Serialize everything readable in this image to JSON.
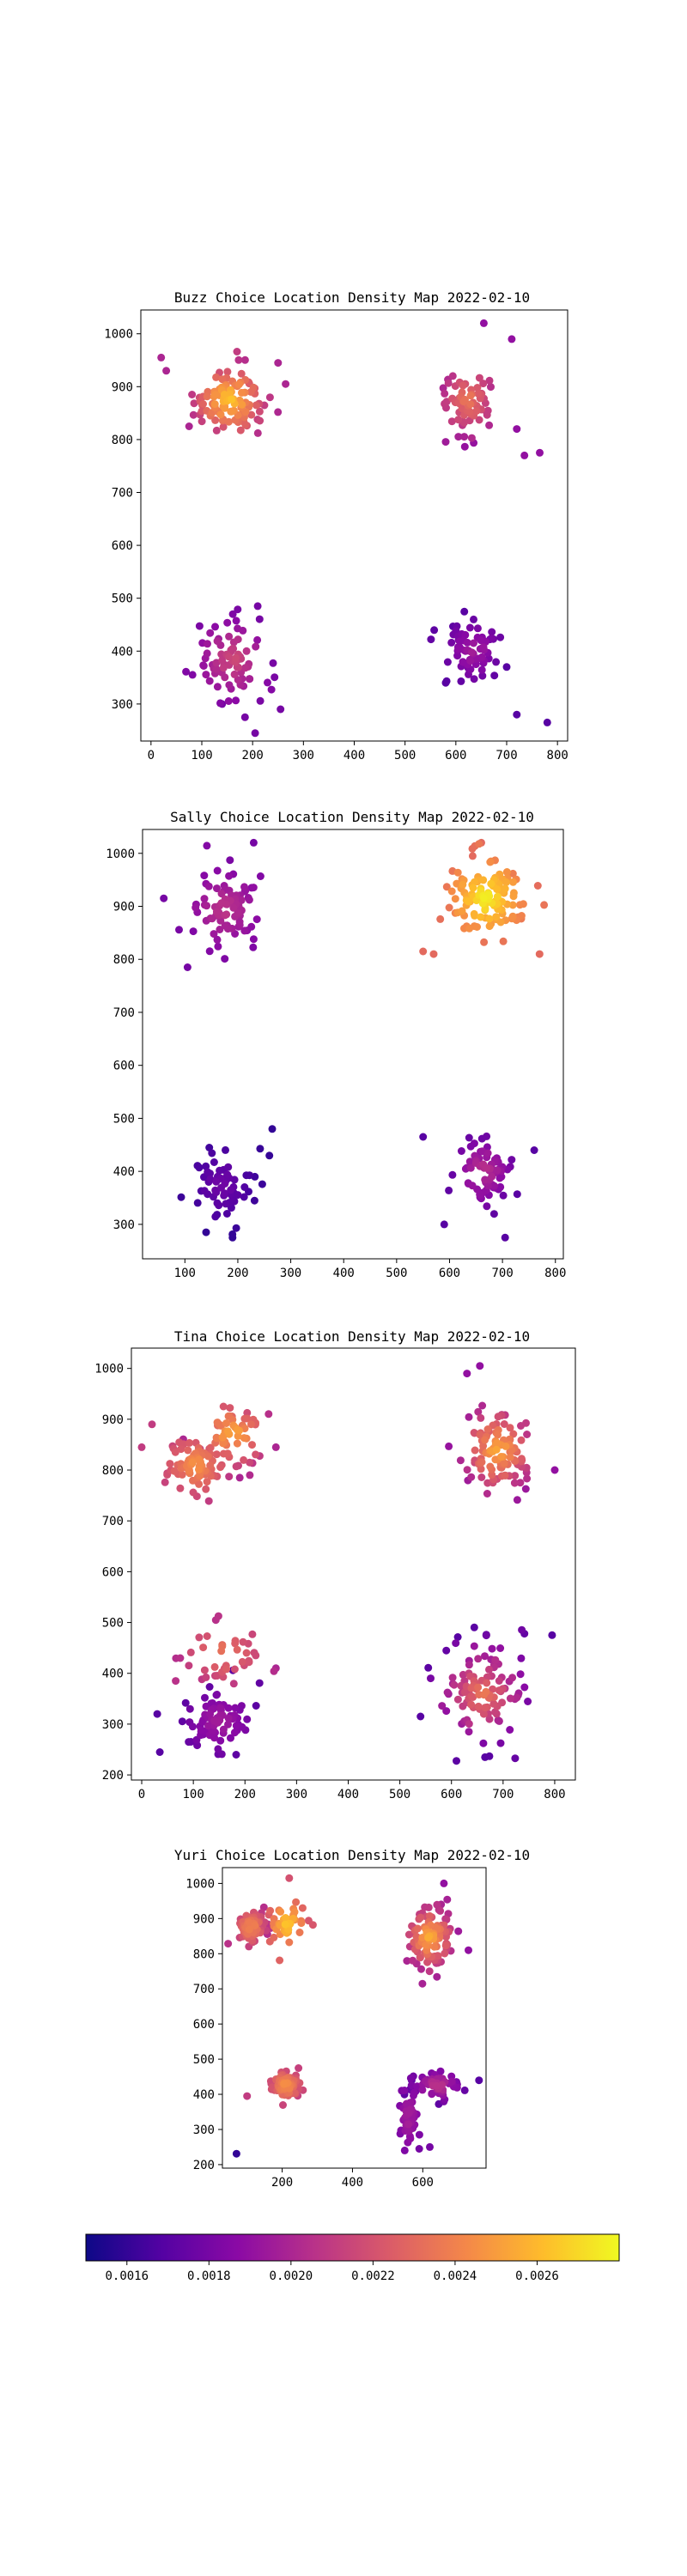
{
  "colorbar": {
    "colormap": "plasma",
    "range": [
      0.0015,
      0.0028
    ],
    "ticks": [
      "0.0016",
      "0.0018",
      "0.0020",
      "0.0022",
      "0.0024",
      "0.0026"
    ],
    "tick_values": [
      0.0016,
      0.0018,
      0.002,
      0.0022,
      0.0024,
      0.0026
    ]
  },
  "chart_data": [
    {
      "type": "scatter",
      "title": "Buzz Choice Location Density Map 2022-02-10",
      "xlim": [
        -20,
        820
      ],
      "ylim": [
        230,
        1045
      ],
      "xticks": [
        0,
        100,
        200,
        300,
        400,
        500,
        600,
        700,
        800
      ],
      "yticks": [
        300,
        400,
        500,
        600,
        700,
        800,
        900,
        1000
      ],
      "clusters": [
        {
          "center": [
            155,
            875
          ],
          "spread": [
            38,
            35
          ],
          "count": 110,
          "density": [
            0.002,
            0.0027
          ],
          "outliers": [
            [
              20,
              955
            ],
            [
              30,
              930
            ],
            [
              250,
              945
            ],
            [
              265,
              905
            ],
            [
              75,
              825
            ]
          ]
        },
        {
          "center": [
            625,
            875
          ],
          "spread": [
            32,
            38
          ],
          "count": 70,
          "density": [
            0.0019,
            0.0024
          ],
          "outliers": [
            [
              655,
              1020
            ],
            [
              710,
              990
            ],
            [
              720,
              820
            ],
            [
              735,
              770
            ],
            [
              765,
              775
            ]
          ]
        },
        {
          "center": [
            160,
            385
          ],
          "spread": [
            35,
            40
          ],
          "count": 80,
          "density": [
            0.0018,
            0.0022
          ],
          "outliers": [
            [
              210,
              485
            ],
            [
              185,
              275
            ],
            [
              205,
              245
            ],
            [
              255,
              290
            ],
            [
              140,
              300
            ]
          ]
        },
        {
          "center": [
            635,
            400
          ],
          "spread": [
            30,
            30
          ],
          "count": 70,
          "density": [
            0.0017,
            0.002
          ],
          "outliers": [
            [
              720,
              280
            ],
            [
              780,
              265
            ],
            [
              580,
              340
            ],
            [
              700,
              370
            ]
          ]
        }
      ]
    },
    {
      "type": "scatter",
      "title": "Sally Choice Location Density Map 2022-02-10",
      "xlim": [
        20,
        815
      ],
      "ylim": [
        235,
        1045
      ],
      "xticks": [
        100,
        200,
        300,
        400,
        500,
        600,
        700,
        800
      ],
      "yticks": [
        300,
        400,
        500,
        600,
        700,
        800,
        900,
        1000
      ],
      "clusters": [
        {
          "center": [
            175,
            895
          ],
          "spread": [
            38,
            38
          ],
          "count": 85,
          "density": [
            0.0018,
            0.0021
          ],
          "outliers": [
            [
              105,
              785
            ],
            [
              230,
              1020
            ],
            [
              60,
              915
            ]
          ]
        },
        {
          "center": [
            670,
            915
          ],
          "spread": [
            38,
            38
          ],
          "count": 120,
          "density": [
            0.0023,
            0.0028
          ],
          "outliers": [
            [
              550,
              815
            ],
            [
              570,
              810
            ],
            [
              660,
              1020
            ],
            [
              770,
              810
            ]
          ]
        },
        {
          "center": [
            170,
            375
          ],
          "spread": [
            32,
            38
          ],
          "count": 65,
          "density": [
            0.0016,
            0.0018
          ],
          "outliers": [
            [
              265,
              480
            ],
            [
              190,
              275
            ],
            [
              140,
              285
            ]
          ]
        },
        {
          "center": [
            665,
            400
          ],
          "spread": [
            30,
            35
          ],
          "count": 75,
          "density": [
            0.0017,
            0.0021
          ],
          "outliers": [
            [
              550,
              465
            ],
            [
              590,
              300
            ],
            [
              705,
              275
            ],
            [
              760,
              440
            ]
          ]
        }
      ]
    },
    {
      "type": "scatter",
      "title": "Tina Choice Location Density Map 2022-02-10",
      "xlim": [
        -20,
        840
      ],
      "ylim": [
        190,
        1040
      ],
      "xticks": [
        0,
        100,
        200,
        300,
        400,
        500,
        600,
        700,
        800
      ],
      "yticks": [
        200,
        300,
        400,
        500,
        600,
        700,
        800,
        900,
        1000
      ],
      "clusters": [
        {
          "center": [
            105,
            810
          ],
          "spread": [
            30,
            30
          ],
          "count": 80,
          "density": [
            0.0021,
            0.0025
          ],
          "outliers": [
            [
              0,
              845
            ],
            [
              20,
              890
            ]
          ]
        },
        {
          "center": [
            175,
            870
          ],
          "spread": [
            38,
            35
          ],
          "count": 60,
          "density": [
            0.002,
            0.0026
          ],
          "outliers": [
            [
              190,
              785
            ],
            [
              260,
              845
            ]
          ]
        },
        {
          "center": [
            690,
            840
          ],
          "spread": [
            38,
            45
          ],
          "count": 110,
          "density": [
            0.0019,
            0.0026
          ],
          "outliers": [
            [
              655,
              1005
            ],
            [
              800,
              800
            ],
            [
              630,
              990
            ]
          ]
        },
        {
          "center": [
            150,
            305
          ],
          "spread": [
            35,
            35
          ],
          "count": 80,
          "density": [
            0.0017,
            0.002
          ],
          "outliers": [
            [
              35,
              245
            ],
            [
              30,
              320
            ]
          ]
        },
        {
          "center": [
            160,
            440
          ],
          "spread": [
            45,
            35
          ],
          "count": 40,
          "density": [
            0.002,
            0.0024
          ],
          "outliers": [
            [
              260,
              410
            ]
          ]
        },
        {
          "center": [
            660,
            360
          ],
          "spread": [
            50,
            55
          ],
          "count": 110,
          "density": [
            0.0017,
            0.0024
          ],
          "outliers": [
            [
              665,
              235
            ],
            [
              795,
              475
            ],
            [
              540,
              315
            ]
          ]
        }
      ]
    },
    {
      "type": "scatter",
      "title": "Yuri Choice Location Density Map 2022-02-10",
      "xlim": [
        30,
        780
      ],
      "ylim": [
        190,
        1045
      ],
      "xticks": [
        200,
        400,
        600
      ],
      "yticks": [
        200,
        300,
        400,
        500,
        600,
        700,
        800,
        900,
        1000
      ],
      "clusters": [
        {
          "center": [
            110,
            875
          ],
          "spread": [
            24,
            28
          ],
          "count": 60,
          "density": [
            0.002,
            0.0025
          ],
          "outliers": []
        },
        {
          "center": [
            215,
            885
          ],
          "spread": [
            28,
            38
          ],
          "count": 40,
          "density": [
            0.0022,
            0.0027
          ],
          "outliers": [
            [
              220,
              1015
            ]
          ]
        },
        {
          "center": [
            620,
            845
          ],
          "spread": [
            38,
            50
          ],
          "count": 100,
          "density": [
            0.0019,
            0.0026
          ],
          "outliers": [
            [
              660,
              1000
            ],
            [
              730,
              810
            ]
          ]
        },
        {
          "center": [
            210,
            425
          ],
          "spread": [
            22,
            22
          ],
          "count": 70,
          "density": [
            0.0021,
            0.0025
          ],
          "outliers": [
            [
              100,
              395
            ]
          ]
        },
        {
          "center": [
            640,
            425
          ],
          "spread": [
            40,
            25
          ],
          "count": 55,
          "density": [
            0.0017,
            0.0021
          ],
          "outliers": [
            [
              760,
              440
            ]
          ]
        },
        {
          "center": [
            560,
            335
          ],
          "spread": [
            14,
            50
          ],
          "count": 50,
          "density": [
            0.0018,
            0.002
          ],
          "outliers": [
            [
              620,
              250
            ],
            [
              590,
              245
            ]
          ]
        },
        {
          "center": [
            70,
            230
          ],
          "spread": [
            2,
            2
          ],
          "count": 1,
          "density": [
            0.0016,
            0.0016
          ],
          "outliers": []
        }
      ]
    }
  ]
}
